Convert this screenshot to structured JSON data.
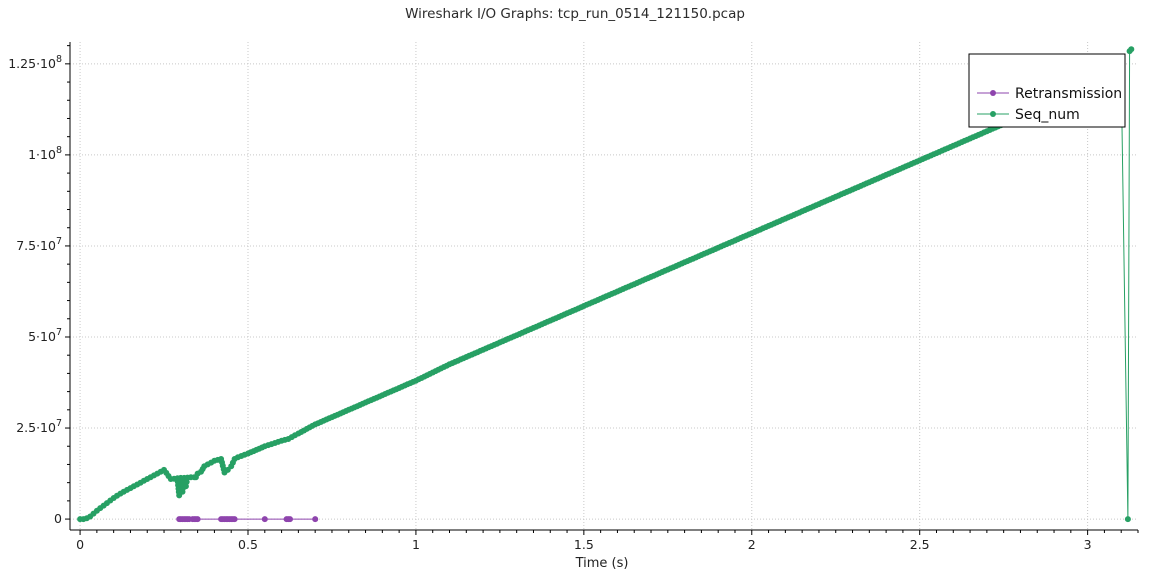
{
  "chart_data": {
    "type": "line",
    "title": "Wireshark I/O Graphs: tcp_run_0514_121150.pcap",
    "xlabel": "Time (s)",
    "ylabel": "",
    "xlim": [
      -0.03,
      3.15
    ],
    "ylim": [
      -3000000,
      131000000
    ],
    "x_ticks": [
      0,
      0.5,
      1,
      1.5,
      2,
      2.5,
      3
    ],
    "x_tick_labels": [
      "0",
      "0.5",
      "1",
      "1.5",
      "2",
      "2.5",
      "3"
    ],
    "y_ticks": [
      0,
      25000000,
      50000000,
      75000000,
      100000000,
      125000000
    ],
    "y_tick_labels": [
      {
        "mantissa": "0",
        "exp": ""
      },
      {
        "mantissa": "2.5·10",
        "exp": "7"
      },
      {
        "mantissa": "5·10",
        "exp": "7"
      },
      {
        "mantissa": "7.5·10",
        "exp": "7"
      },
      {
        "mantissa": "1·10",
        "exp": "8"
      },
      {
        "mantissa": "1.25·10",
        "exp": "8"
      }
    ],
    "grid": true,
    "legend_position": "top-right",
    "series": [
      {
        "name": "Retransmission",
        "color": "#8e44ad",
        "marker": "circle",
        "x": [
          0.295,
          0.3,
          0.305,
          0.31,
          0.315,
          0.32,
          0.325,
          0.335,
          0.34,
          0.345,
          0.35,
          0.42,
          0.425,
          0.43,
          0.435,
          0.44,
          0.445,
          0.45,
          0.455,
          0.46,
          0.55,
          0.615,
          0.62,
          0.625,
          0.7
        ],
        "values": [
          0,
          0,
          0,
          0,
          0,
          0,
          0,
          0,
          0,
          0,
          0,
          0,
          0,
          0,
          0,
          0,
          0,
          0,
          0,
          0,
          0,
          0,
          0,
          0,
          0
        ]
      },
      {
        "name": "Seq_num",
        "color": "#27a064",
        "marker": "circle",
        "x": [
          0.0,
          0.01,
          0.02,
          0.03,
          0.04,
          0.05,
          0.06,
          0.07,
          0.08,
          0.09,
          0.1,
          0.12,
          0.14,
          0.16,
          0.18,
          0.2,
          0.22,
          0.24,
          0.25,
          0.27,
          0.29,
          0.295,
          0.3,
          0.305,
          0.31,
          0.315,
          0.32,
          0.33,
          0.34,
          0.345,
          0.35,
          0.36,
          0.37,
          0.38,
          0.4,
          0.42,
          0.43,
          0.44,
          0.45,
          0.46,
          0.47,
          0.5,
          0.55,
          0.6,
          0.62,
          0.65,
          0.7,
          0.8,
          0.9,
          1.0,
          1.1,
          1.2,
          1.3,
          1.4,
          1.5,
          1.6,
          1.7,
          1.8,
          1.9,
          2.0,
          2.1,
          2.2,
          2.3,
          2.4,
          2.5,
          2.6,
          2.7,
          2.8,
          2.9,
          3.0,
          3.1,
          3.12,
          3.125,
          3.13
        ],
        "values": [
          0,
          0,
          200000,
          700000,
          1500000,
          2300000,
          3000000,
          3700000,
          4400000,
          5100000,
          5800000,
          7000000,
          8000000,
          9000000,
          10000000,
          11000000,
          12000000,
          13000000,
          13500000,
          11000000,
          11200000,
          6500000,
          11300000,
          7500000,
          11300000,
          9000000,
          11400000,
          11500000,
          11500000,
          11500000,
          12500000,
          13000000,
          14500000,
          15000000,
          16000000,
          16500000,
          12800000,
          13500000,
          14500000,
          16500000,
          17000000,
          18000000,
          20000000,
          21500000,
          22000000,
          23500000,
          26000000,
          30000000,
          34000000,
          38000000,
          42500000,
          46500000,
          50500000,
          54500000,
          58500000,
          62500000,
          66500000,
          70500000,
          74500000,
          78500000,
          82500000,
          86500000,
          90500000,
          94500000,
          98500000,
          102500000,
          106500000,
          110500000,
          114500000,
          118500000,
          122500000,
          0,
          128500000,
          129000000
        ]
      }
    ]
  }
}
